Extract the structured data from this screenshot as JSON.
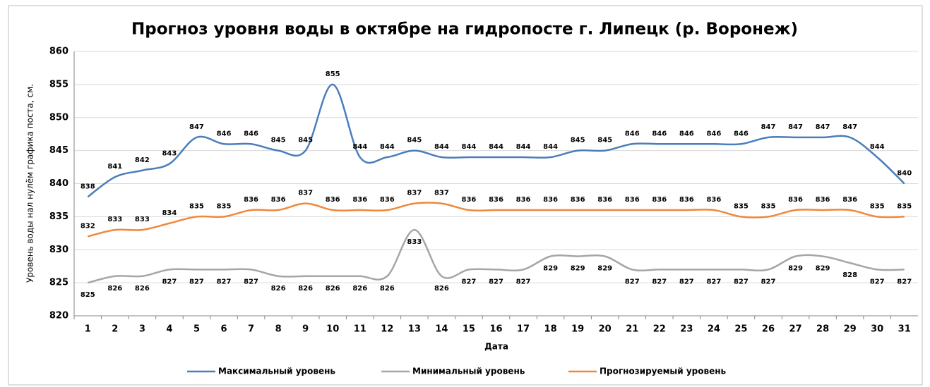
{
  "chart_data": {
    "type": "line",
    "title": "Прогноз уровня воды в октябре на гидропосте г. Липецк (р. Воронеж)",
    "x_label": "Дата",
    "y_label": "Уровень воды нал нулём графика поста, см.",
    "categories": [
      "1",
      "2",
      "3",
      "4",
      "5",
      "6",
      "7",
      "8",
      "9",
      "10",
      "11",
      "12",
      "13",
      "14",
      "15",
      "16",
      "17",
      "18",
      "19",
      "20",
      "21",
      "22",
      "23",
      "24",
      "25",
      "26",
      "27",
      "28",
      "29",
      "30",
      "31"
    ],
    "ylim": [
      820,
      860
    ],
    "yticks": [
      820,
      825,
      830,
      835,
      840,
      845,
      850,
      855,
      860
    ],
    "grid": true,
    "legend": "bottom",
    "series": [
      {
        "name": "Максимальный  уровень",
        "color": "#4a7ebb",
        "values": [
          838,
          841,
          842,
          843,
          847,
          846,
          846,
          845,
          845,
          855,
          844,
          844,
          845,
          844,
          844,
          844,
          844,
          844,
          845,
          845,
          846,
          846,
          846,
          846,
          846,
          847,
          847,
          847,
          847,
          844,
          840
        ]
      },
      {
        "name": "Минимальный  уровень",
        "color": "#a6a6a6",
        "values": [
          825,
          826,
          826,
          827,
          827,
          827,
          827,
          826,
          826,
          826,
          826,
          826,
          833,
          826,
          827,
          827,
          827,
          829,
          829,
          829,
          827,
          827,
          827,
          827,
          827,
          827,
          829,
          829,
          828,
          827,
          827
        ]
      },
      {
        "name": "Прогнозируемый  уровень",
        "color": "#f0883a",
        "values": [
          832,
          833,
          833,
          834,
          835,
          835,
          836,
          836,
          837,
          836,
          836,
          836,
          837,
          837,
          836,
          836,
          836,
          836,
          836,
          836,
          836,
          836,
          836,
          836,
          835,
          835,
          836,
          836,
          836,
          835,
          835
        ]
      }
    ]
  }
}
